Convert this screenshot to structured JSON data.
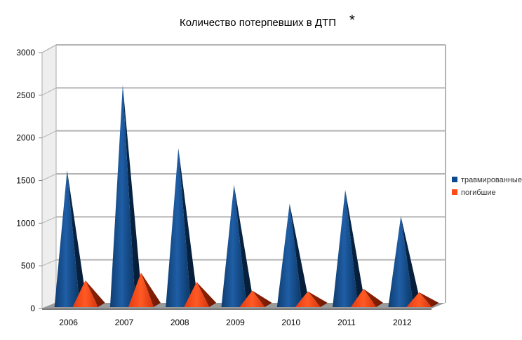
{
  "chart_data": {
    "type": "bar",
    "title": "Количество потерпевших в ДТП",
    "title_mark": "*",
    "xlabel": "",
    "ylabel": "",
    "categories": [
      "2006",
      "2007",
      "2008",
      "2009",
      "2010",
      "2011",
      "2012"
    ],
    "series": [
      {
        "name": "травмированные",
        "color": "#0b4a8c",
        "values": [
          1620,
          2620,
          1880,
          1450,
          1230,
          1390,
          1080
        ]
      },
      {
        "name": "погибшие",
        "color": "#ff4a1a",
        "values": [
          330,
          420,
          310,
          210,
          200,
          230,
          190
        ]
      }
    ],
    "ylim": [
      0,
      3000
    ],
    "yticks": [
      "0",
      "500",
      "1000",
      "1500",
      "2000",
      "2500",
      "3000"
    ],
    "grid": true,
    "legend_position": "right",
    "mark_shape": "pyramid-3d"
  }
}
